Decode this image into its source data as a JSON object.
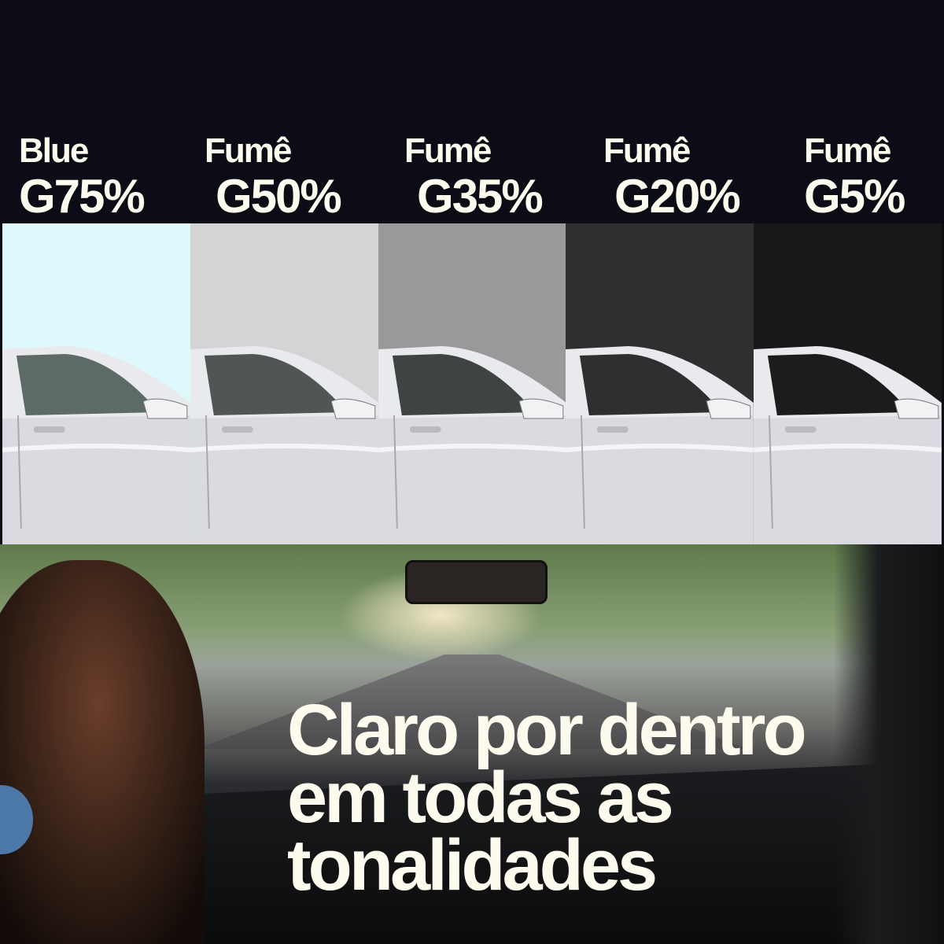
{
  "shades": [
    {
      "line1": "Blue",
      "line2": "G75%",
      "color": "#dff8fb"
    },
    {
      "line1": "Fumê",
      "line2": "G50%",
      "color": "#d4d4d4"
    },
    {
      "line1": "Fumê",
      "line2": "G35%",
      "color": "#999999"
    },
    {
      "line1": "Fumê",
      "line2": "G20%",
      "color": "#2f2f2f"
    },
    {
      "line1": "Fumê",
      "line2": "G5%",
      "color": "#181818"
    }
  ],
  "headline": {
    "line1": "Claro por dentro",
    "line2": "em todas as",
    "line3": "tonalidades"
  },
  "colors": {
    "background": "#0b0c16",
    "text": "#fdfbee",
    "accent_dot": "#4d79a8"
  }
}
